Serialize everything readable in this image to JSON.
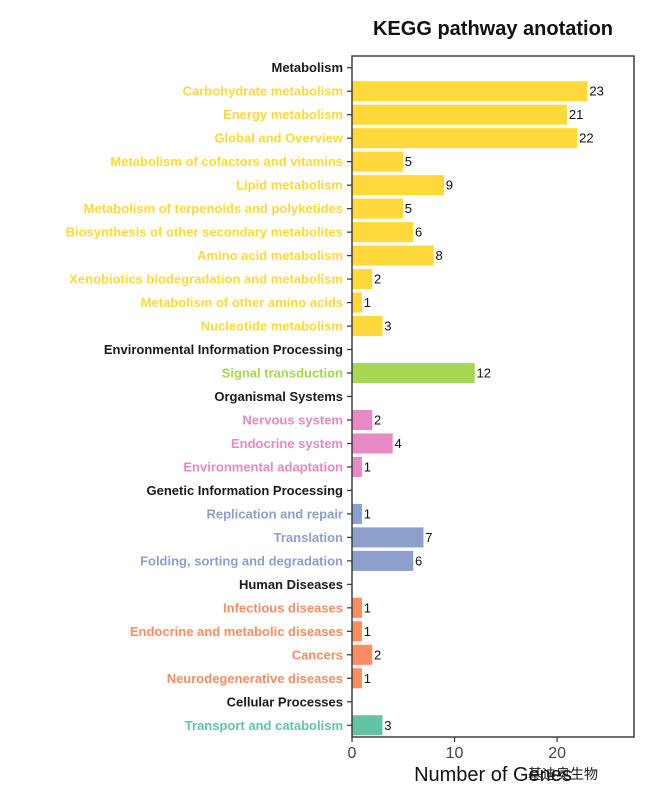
{
  "chart_data": {
    "type": "bar",
    "orientation": "horizontal",
    "title": "KEGG pathway anotation",
    "xlabel": "Number of Genes",
    "ylabel": "",
    "xlim": [
      0,
      27.5
    ],
    "xticks": [
      0,
      10,
      20
    ],
    "grid": false,
    "legend": "none",
    "colors": {
      "Metabolism": "#FFD93A",
      "Environmental Information Processing": "#A6D854",
      "Organismal Systems": "#E78AC3",
      "Genetic Information Processing": "#8DA0CB",
      "Human Diseases": "#FC8D62",
      "Cellular Processes": "#66C2A5",
      "header": "#1a1a1a"
    },
    "rows": [
      {
        "label": "Metabolism",
        "header": true,
        "group": "Metabolism"
      },
      {
        "label": "Carbohydrate metabolism",
        "value": 23,
        "group": "Metabolism"
      },
      {
        "label": "Energy metabolism",
        "value": 21,
        "group": "Metabolism"
      },
      {
        "label": "Global and Overview",
        "value": 22,
        "group": "Metabolism"
      },
      {
        "label": "Metabolism of cofactors and vitamins",
        "value": 5,
        "group": "Metabolism"
      },
      {
        "label": "Lipid metabolism",
        "value": 9,
        "group": "Metabolism"
      },
      {
        "label": "Metabolism of terpenoids and polyketides",
        "value": 5,
        "group": "Metabolism"
      },
      {
        "label": "Biosynthesis of other secondary metabolites",
        "value": 6,
        "group": "Metabolism"
      },
      {
        "label": "Amino acid metabolism",
        "value": 8,
        "group": "Metabolism"
      },
      {
        "label": "Xenobiotics biodegradation and metabolism",
        "value": 2,
        "group": "Metabolism"
      },
      {
        "label": "Metabolism of other amino acids",
        "value": 1,
        "group": "Metabolism"
      },
      {
        "label": "Nucleotide metabolism",
        "value": 3,
        "group": "Metabolism"
      },
      {
        "label": "Environmental Information Processing",
        "header": true,
        "group": "Environmental Information Processing"
      },
      {
        "label": "Signal transduction",
        "value": 12,
        "group": "Environmental Information Processing"
      },
      {
        "label": "Organismal Systems",
        "header": true,
        "group": "Organismal Systems"
      },
      {
        "label": "Nervous system",
        "value": 2,
        "group": "Organismal Systems"
      },
      {
        "label": "Endocrine system",
        "value": 4,
        "group": "Organismal Systems"
      },
      {
        "label": "Environmental adaptation",
        "value": 1,
        "group": "Organismal Systems"
      },
      {
        "label": "Genetic Information Processing",
        "header": true,
        "group": "Genetic Information Processing"
      },
      {
        "label": "Replication and repair",
        "value": 1,
        "group": "Genetic Information Processing"
      },
      {
        "label": "Translation",
        "value": 7,
        "group": "Genetic Information Processing"
      },
      {
        "label": "Folding, sorting and degradation",
        "value": 6,
        "group": "Genetic Information Processing"
      },
      {
        "label": "Human Diseases",
        "header": true,
        "group": "Human Diseases"
      },
      {
        "label": "Infectious diseases",
        "value": 1,
        "group": "Human Diseases"
      },
      {
        "label": "Endocrine and metabolic diseases",
        "value": 1,
        "group": "Human Diseases"
      },
      {
        "label": "Cancers",
        "value": 2,
        "group": "Human Diseases"
      },
      {
        "label": "Neurodegenerative diseases",
        "value": 1,
        "group": "Human Diseases"
      },
      {
        "label": "Cellular Processes",
        "header": true,
        "group": "Cellular Processes"
      },
      {
        "label": "Transport and catabolism",
        "value": 3,
        "group": "Cellular Processes"
      }
    ]
  },
  "watermark": "基迪奥生物"
}
